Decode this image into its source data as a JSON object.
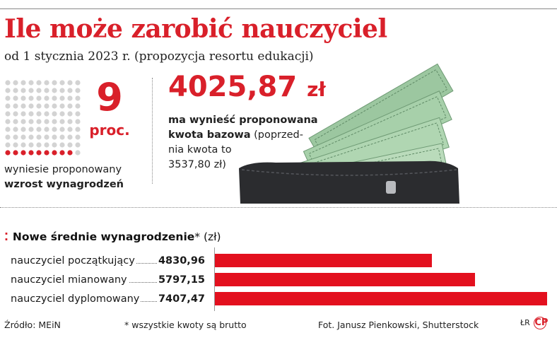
{
  "header": {
    "title": "Ile może zarobić nauczyciel",
    "subtitle": "od 1 stycznia 2023 r. (propozycja resortu edukacji)"
  },
  "stat_increase": {
    "value": "9",
    "unit": "proc.",
    "desc_line1": "wyniesie proponowany",
    "desc_line2": "wzrost wynagrodzeń",
    "dots_total": 100,
    "dots_highlighted": 9
  },
  "stat_base": {
    "amount": "4025,87",
    "currency": "zł",
    "desc_bold_1": "ma wynieść proponowana",
    "desc_bold_2": "kwota bazowa",
    "desc_rest_1": "(poprzed-",
    "desc_rest_2": "nia kwota to",
    "desc_rest_3": "3537,80 zł)"
  },
  "section": {
    "marker": "⁚",
    "title": "Nowe średnie wynagrodzenie",
    "asterisk": "*",
    "unit": " (zł)"
  },
  "chart_data": {
    "type": "bar",
    "orientation": "horizontal",
    "title": "Nowe średnie wynagrodzenie* (zł)",
    "categories": [
      "nauczyciel początkujący",
      "nauczyciel mianowany",
      "nauczyciel dyplomowany"
    ],
    "value_labels": [
      "4830,96",
      "5797,15",
      "7407,47"
    ],
    "values": [
      4830.96,
      5797.15,
      7407.47
    ],
    "xlim": [
      0,
      7407.47
    ],
    "bar_color": "#e3101e"
  },
  "footer": {
    "source": "Źródło: MEiN",
    "note": "* wszystkie kwoty są brutto",
    "photo": "Fot. Janusz Pienkowski, Shutterstock",
    "logo_left": "ŁR",
    "logo_right": "CP"
  },
  "colors": {
    "accent": "#d9202a",
    "bar": "#e3101e"
  }
}
